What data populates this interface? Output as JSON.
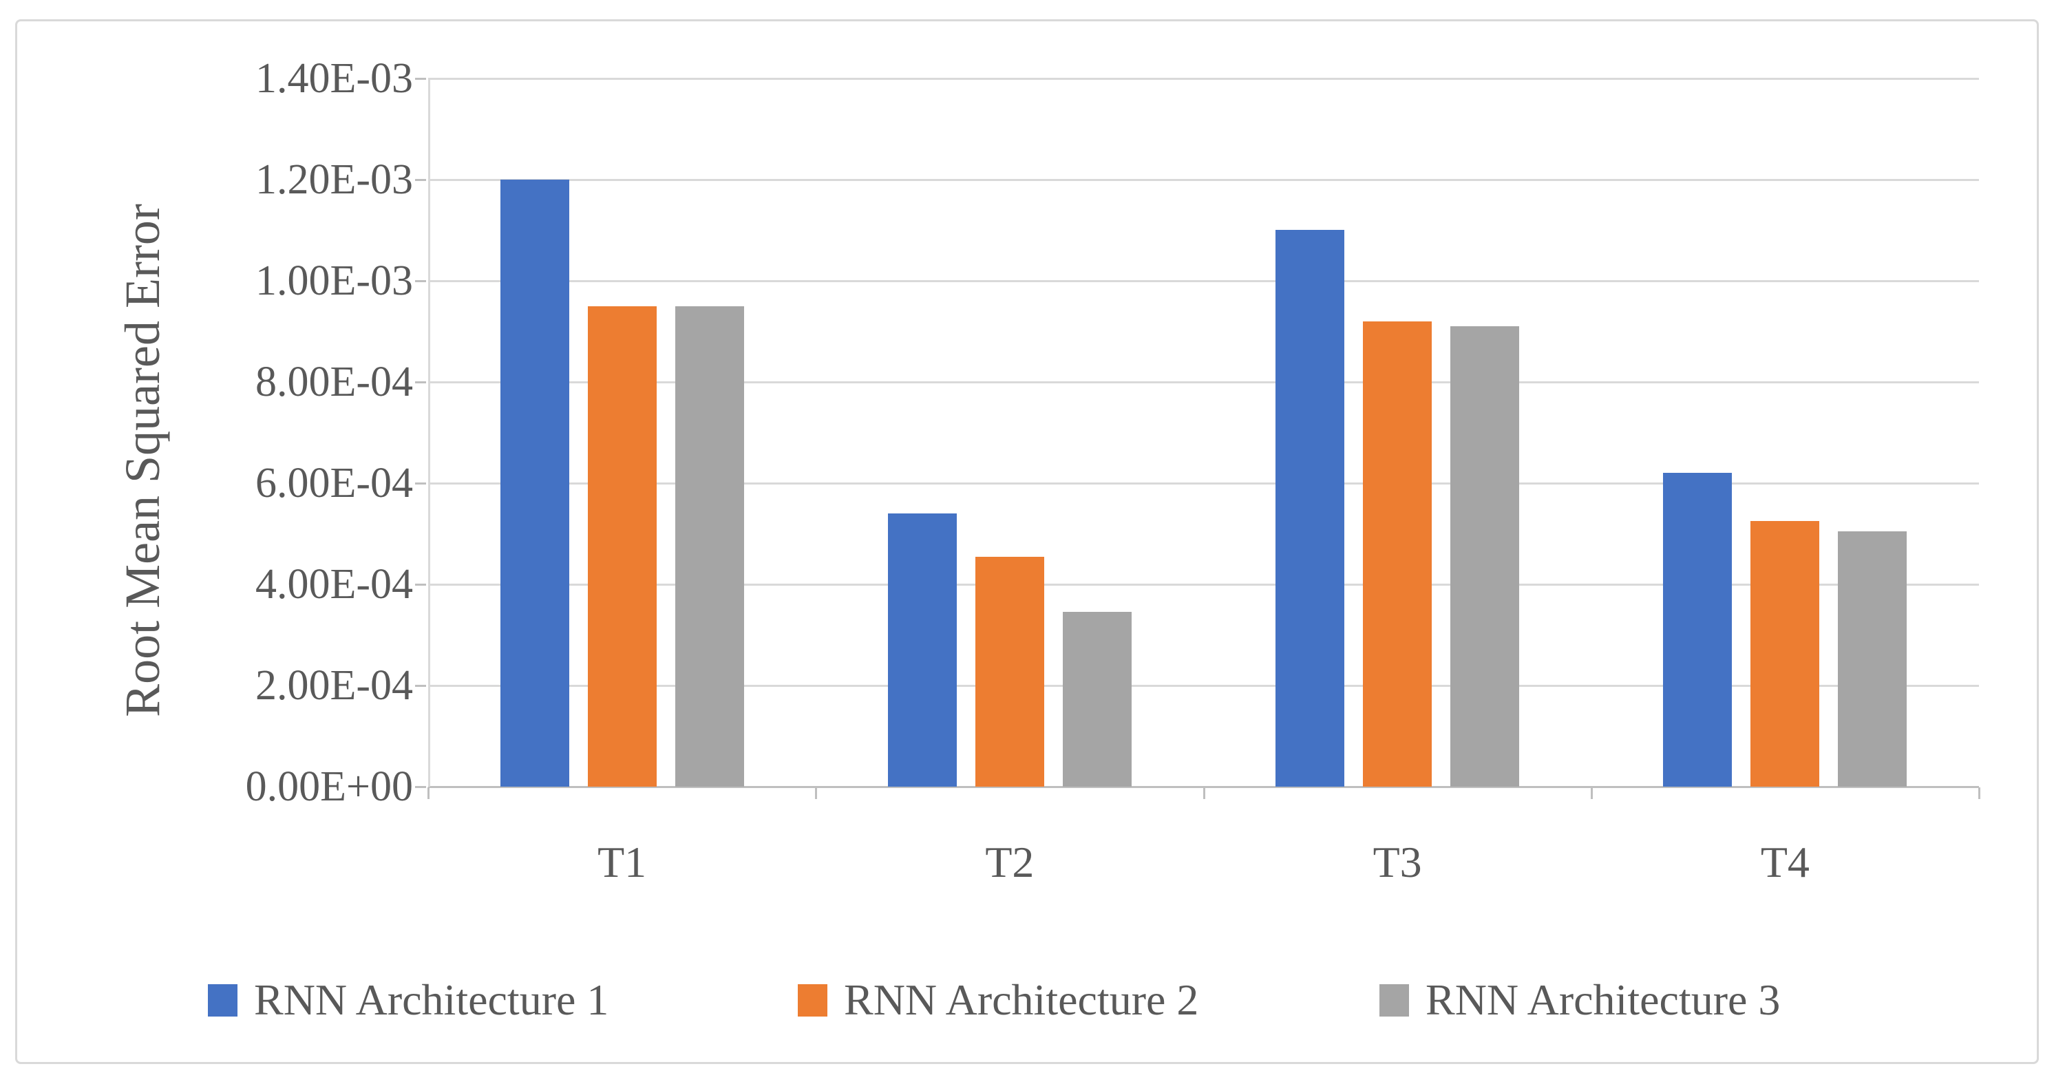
{
  "chart_data": {
    "type": "bar",
    "title": "",
    "categories": [
      "T1",
      "T2",
      "T3",
      "T4"
    ],
    "series": [
      {
        "name": "RNN Architecture 1",
        "color": "#4472C4",
        "values": [
          0.0012,
          0.00054,
          0.0011,
          0.00062
        ]
      },
      {
        "name": "RNN Architecture 2",
        "color": "#ED7D31",
        "values": [
          0.00095,
          0.000455,
          0.00092,
          0.000525
        ]
      },
      {
        "name": "RNN Architecture 3",
        "color": "#A5A5A5",
        "values": [
          0.00095,
          0.000345,
          0.00091,
          0.000505
        ]
      }
    ],
    "xlabel": "",
    "ylabel": "Root Mean Squared Error",
    "ylim": [
      0,
      0.0014
    ],
    "ytick_step": 0.0002,
    "ytick_labels": [
      "0.00E+00",
      "2.00E-04",
      "4.00E-04",
      "6.00E-04",
      "8.00E-04",
      "1.00E-03",
      "1.20E-03",
      "1.40E-03"
    ],
    "grid": true,
    "legend_position": "bottom"
  },
  "style_colors": {
    "gridline": "#D9D9D9",
    "axis_line": "#BFBFBF",
    "text": "#595959",
    "frame_border": "#D9D9D9",
    "background": "#FFFFFF"
  }
}
